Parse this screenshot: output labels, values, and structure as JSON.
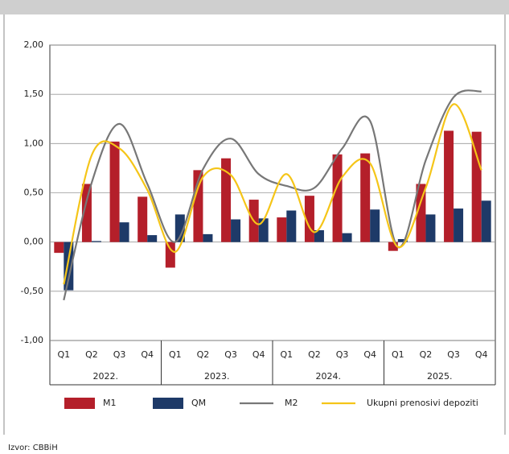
{
  "chart_data": {
    "type": "bar",
    "categories": [
      "Q1",
      "Q2",
      "Q3",
      "Q4",
      "Q1",
      "Q2",
      "Q3",
      "Q4",
      "Q1",
      "Q2",
      "Q3",
      "Q4",
      "Q1",
      "Q2",
      "Q3",
      "Q4"
    ],
    "year_groups": [
      "2022.",
      "2023.",
      "2024.",
      "2025."
    ],
    "series": [
      {
        "name": "M1",
        "type": "bar",
        "color": "#b41f2a",
        "values": [
          -0.11,
          0.59,
          1.02,
          0.46,
          -0.26,
          0.73,
          0.85,
          0.43,
          0.25,
          0.47,
          0.89,
          0.9,
          -0.09,
          0.59,
          1.13,
          1.12
        ]
      },
      {
        "name": "QM",
        "type": "bar",
        "color": "#1e3a68",
        "values": [
          -0.49,
          0.01,
          0.2,
          0.07,
          0.28,
          0.08,
          0.23,
          0.24,
          0.32,
          0.12,
          0.09,
          0.33,
          0.03,
          0.28,
          0.34,
          0.42
        ]
      },
      {
        "name": "M2",
        "type": "line",
        "color": "#777777",
        "values": [
          -0.59,
          0.6,
          1.2,
          0.59,
          0.0,
          0.74,
          1.05,
          0.69,
          0.57,
          0.55,
          0.95,
          1.23,
          -0.05,
          0.83,
          1.47,
          1.53
        ]
      },
      {
        "name": "Ukupni prenosivi depoziti",
        "type": "line",
        "color": "#f5c518",
        "values": [
          -0.43,
          0.88,
          0.95,
          0.53,
          -0.1,
          0.66,
          0.68,
          0.18,
          0.69,
          0.1,
          0.66,
          0.8,
          -0.05,
          0.55,
          1.4,
          0.73
        ]
      }
    ],
    "ylim": [
      -1,
      2
    ],
    "yticks": [
      {
        "value": -1,
        "label": "-1,00"
      },
      {
        "value": -0.5,
        "label": "-0,50"
      },
      {
        "value": 0,
        "label": "0,00"
      },
      {
        "value": 0.5,
        "label": "0,50"
      },
      {
        "value": 1,
        "label": "1,00"
      },
      {
        "value": 1.5,
        "label": "1,50"
      },
      {
        "value": 2,
        "label": "2,00"
      }
    ],
    "grid": true,
    "source": "Izvor: CBBiH"
  }
}
